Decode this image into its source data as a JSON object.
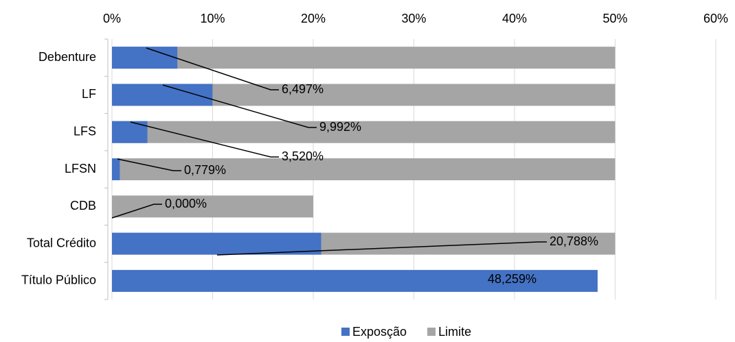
{
  "chart_data": {
    "type": "bar",
    "orientation": "horizontal",
    "categories": [
      "Debenture",
      "LF",
      "LFS",
      "LFSN",
      "CDB",
      "Total Crédito",
      "Título Público"
    ],
    "series": [
      {
        "name": "Exposção",
        "color": "#4472c4",
        "values": [
          6.497,
          9.992,
          3.52,
          0.779,
          0,
          20.788,
          48.259
        ],
        "value_labels": [
          "6,497%",
          "9,992%",
          "3,520%",
          "0,779%",
          "0,000%",
          "20,788%",
          "48,259%"
        ]
      },
      {
        "name": "Limite",
        "color": "#a5a5a5",
        "values": [
          50,
          50,
          50,
          50,
          20,
          50,
          null
        ]
      }
    ],
    "xlim": [
      0,
      60
    ],
    "xticks": [
      {
        "value": 0,
        "label": "0%"
      },
      {
        "value": 10,
        "label": "10%"
      },
      {
        "value": 20,
        "label": "20%"
      },
      {
        "value": 30,
        "label": "30%"
      },
      {
        "value": 40,
        "label": "40%"
      },
      {
        "value": 50,
        "label": "50%"
      },
      {
        "value": 60,
        "label": "60%"
      }
    ],
    "grid": true,
    "legend": "bottom"
  }
}
